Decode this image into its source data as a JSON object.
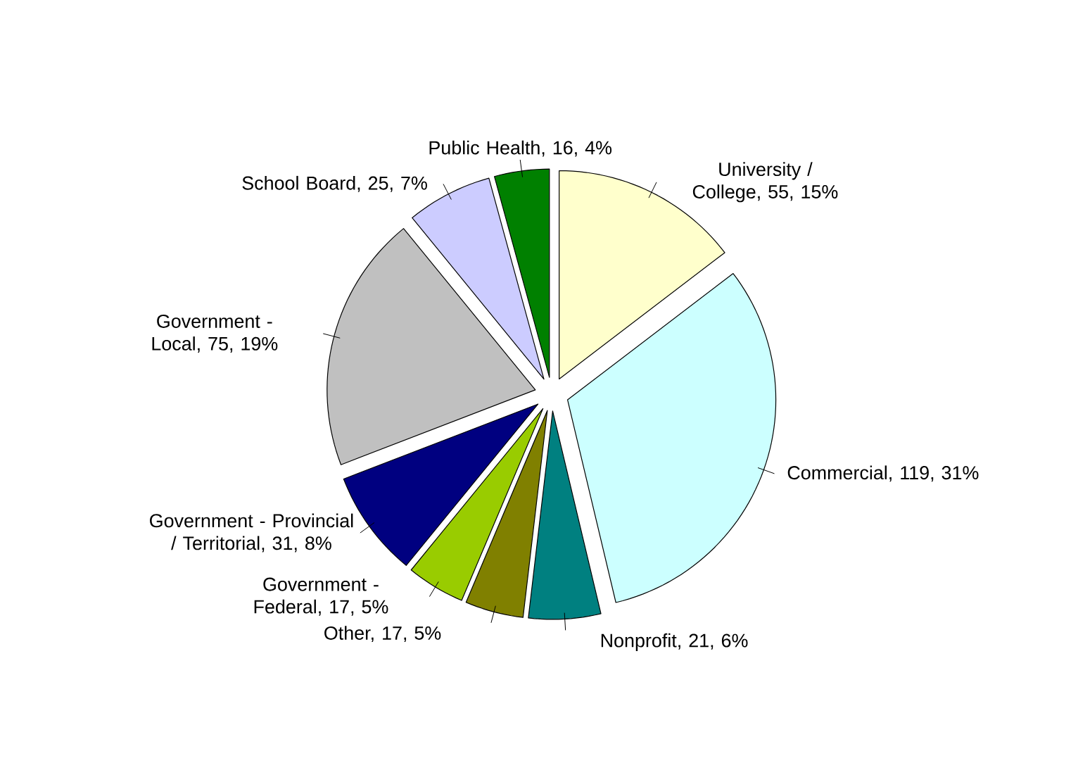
{
  "chart_data": {
    "type": "pie",
    "categories": [
      "University / College, 55, 15%",
      "Commercial, 119, 31%",
      "Nonprofit, 21, 6%",
      "Other, 17, 5%",
      "Government - Federal, 17, 5%",
      "Government - Provincial / Territorial, 31, 8%",
      "Government - Local, 75, 19%",
      "School Board, 25, 7%",
      "Public Health, 16, 4%"
    ],
    "values": [
      55,
      119,
      21,
      17,
      17,
      31,
      75,
      25,
      16
    ],
    "colors": [
      "#ffffcc",
      "#ccffff",
      "#008080",
      "#808000",
      "#99cc00",
      "#000080",
      "#c0c0c0",
      "#ccccff",
      "#008000"
    ]
  }
}
